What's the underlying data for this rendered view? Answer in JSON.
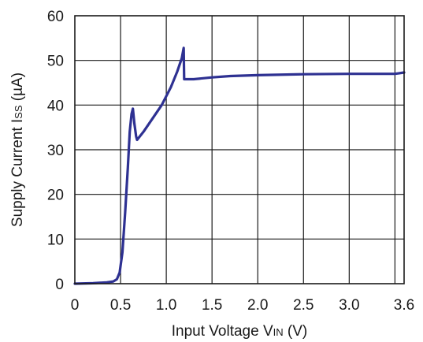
{
  "chart_data": {
    "type": "line",
    "title": "",
    "xlabel": {
      "main": "Input Voltage V",
      "sub": "IN",
      "unit": " (V)"
    },
    "ylabel": {
      "main": "Supply Current I",
      "sub": "SS",
      "unit": " (µA)"
    },
    "xlim": [
      0,
      3.6
    ],
    "ylim": [
      0,
      60
    ],
    "x_ticks": [
      {
        "value": 0,
        "label": "0"
      },
      {
        "value": 0.5,
        "label": "0.5"
      },
      {
        "value": 1.0,
        "label": "1.0"
      },
      {
        "value": 1.5,
        "label": "1.5"
      },
      {
        "value": 2.0,
        "label": "2.0"
      },
      {
        "value": 2.5,
        "label": "2.5"
      },
      {
        "value": 3.0,
        "label": "3.0"
      },
      {
        "value": 3.6,
        "label": "3.6"
      }
    ],
    "x_gridlines": [
      0.5,
      1.0,
      1.5,
      2.0,
      2.5,
      3.0,
      3.5
    ],
    "y_ticks": [
      {
        "value": 0,
        "label": "0"
      },
      {
        "value": 10,
        "label": "10"
      },
      {
        "value": 20,
        "label": "20"
      },
      {
        "value": 30,
        "label": "30"
      },
      {
        "value": 40,
        "label": "40"
      },
      {
        "value": 50,
        "label": "50"
      },
      {
        "value": 60,
        "label": "60"
      }
    ],
    "grid": true,
    "series": [
      {
        "color": "#2e3192",
        "points": [
          [
            0,
            0
          ],
          [
            0.2,
            0.1
          ],
          [
            0.35,
            0.3
          ],
          [
            0.42,
            0.5
          ],
          [
            0.46,
            1.0
          ],
          [
            0.49,
            2.5
          ],
          [
            0.52,
            7
          ],
          [
            0.55,
            16
          ],
          [
            0.58,
            26
          ],
          [
            0.6,
            34
          ],
          [
            0.62,
            38
          ],
          [
            0.635,
            39.2
          ],
          [
            0.65,
            36
          ],
          [
            0.67,
            33
          ],
          [
            0.68,
            32.2
          ],
          [
            0.75,
            34
          ],
          [
            0.85,
            37
          ],
          [
            0.95,
            40
          ],
          [
            1.05,
            44
          ],
          [
            1.12,
            47.5
          ],
          [
            1.17,
            50.5
          ],
          [
            1.19,
            52.8
          ],
          [
            1.195,
            45.8
          ],
          [
            1.3,
            45.8
          ],
          [
            1.5,
            46.2
          ],
          [
            1.7,
            46.5
          ],
          [
            2.0,
            46.7
          ],
          [
            2.5,
            46.9
          ],
          [
            3.0,
            47.0
          ],
          [
            3.3,
            47.0
          ],
          [
            3.5,
            47.0
          ],
          [
            3.6,
            47.3
          ]
        ]
      }
    ]
  }
}
